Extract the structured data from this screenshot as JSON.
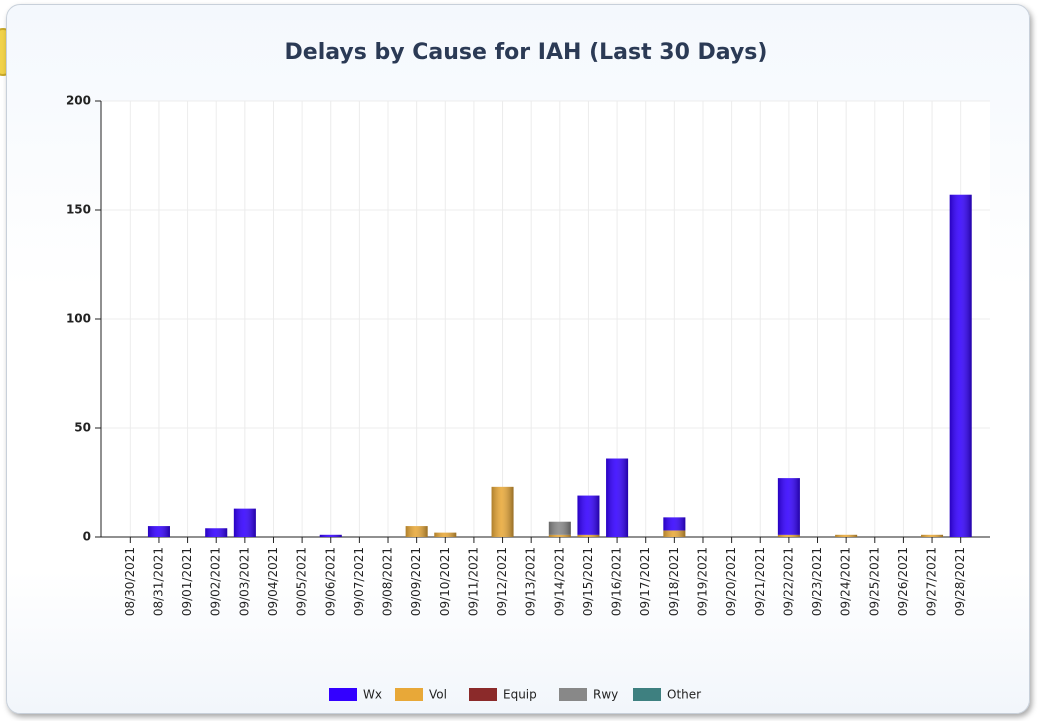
{
  "chart_data": {
    "type": "stacked_bar",
    "title": "Delays by Cause for IAH (Last 30 Days)",
    "categories": [
      "08/30/2021",
      "08/31/2021",
      "09/01/2021",
      "09/02/2021",
      "09/03/2021",
      "09/04/2021",
      "09/05/2021",
      "09/06/2021",
      "09/07/2021",
      "09/08/2021",
      "09/09/2021",
      "09/10/2021",
      "09/11/2021",
      "09/12/2021",
      "09/13/2021",
      "09/14/2021",
      "09/15/2021",
      "09/16/2021",
      "09/17/2021",
      "09/18/2021",
      "09/19/2021",
      "09/20/2021",
      "09/21/2021",
      "09/22/2021",
      "09/23/2021",
      "09/24/2021",
      "09/25/2021",
      "09/26/2021",
      "09/27/2021",
      "09/28/2021"
    ],
    "series": [
      {
        "name": "Wx",
        "color": "#3300ff",
        "values": [
          0,
          5,
          0,
          4,
          13,
          0,
          0,
          1,
          0,
          0,
          0,
          0,
          0,
          0,
          0,
          0,
          18,
          36,
          0,
          6,
          0,
          0,
          0,
          26,
          0,
          0,
          0,
          0,
          0,
          157
        ]
      },
      {
        "name": "Vol",
        "color": "#e8a838",
        "values": [
          0,
          0,
          0,
          0,
          0,
          0,
          0,
          0,
          0,
          0,
          5,
          2,
          0,
          23,
          0,
          1,
          1,
          0,
          0,
          3,
          0,
          0,
          0,
          1,
          0,
          1,
          0,
          0,
          1,
          0
        ]
      },
      {
        "name": "Equip",
        "color": "#8b2a2a",
        "values": [
          0,
          0,
          0,
          0,
          0,
          0,
          0,
          0,
          0,
          0,
          0,
          0,
          0,
          0,
          0,
          0,
          0,
          0,
          0,
          0,
          0,
          0,
          0,
          0,
          0,
          0,
          0,
          0,
          0,
          0
        ]
      },
      {
        "name": "Rwy",
        "color": "#888888",
        "values": [
          0,
          0,
          0,
          0,
          0,
          0,
          0,
          0,
          0,
          0,
          0,
          0,
          0,
          0,
          0,
          6,
          0,
          0,
          0,
          0,
          0,
          0,
          0,
          0,
          0,
          0,
          0,
          0,
          0,
          0
        ]
      },
      {
        "name": "Other",
        "color": "#3e8080",
        "values": [
          0,
          0,
          0,
          0,
          0,
          0,
          0,
          0,
          0,
          0,
          0,
          0,
          0,
          0,
          0,
          0,
          0,
          0,
          0,
          0,
          0,
          0,
          0,
          0,
          0,
          0,
          0,
          0,
          0,
          0
        ]
      }
    ],
    "ylim": [
      0,
      200
    ],
    "yticks": [
      0,
      50,
      100,
      150,
      200
    ],
    "grid": true,
    "legend": "bottom"
  }
}
